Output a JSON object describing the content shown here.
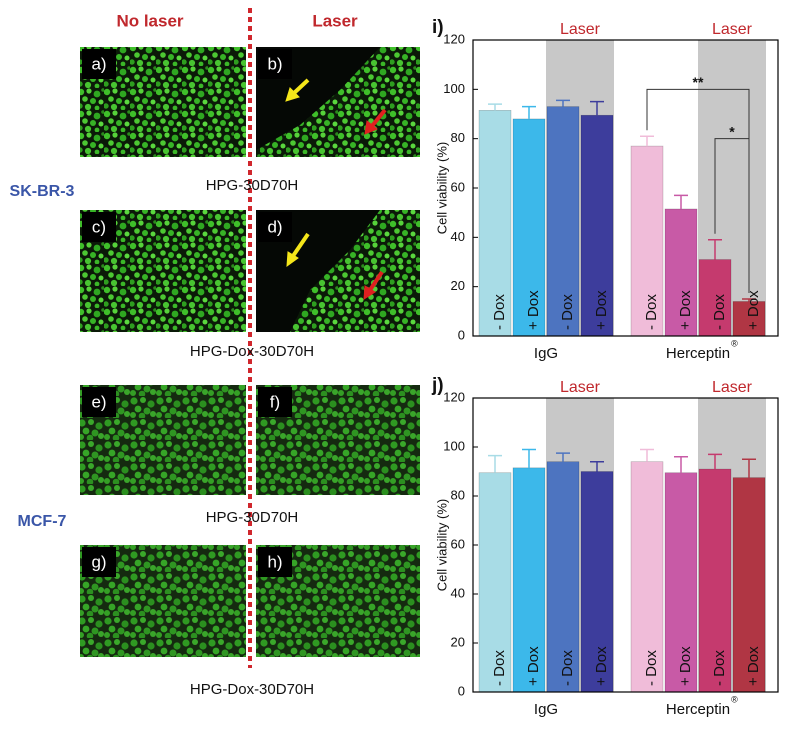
{
  "micrographs": {
    "column_headers": [
      "No laser",
      "Laser"
    ],
    "panels": [
      "a)",
      "b)",
      "c)",
      "d)",
      "e)",
      "f)",
      "g)",
      "h)"
    ],
    "cell_lines": [
      "SK-BR-3",
      "MCF-7"
    ],
    "captions": [
      "HPG-30D70H",
      "HPG-Dox-30D70H",
      "HPG-30D70H",
      "HPG-Dox-30D70H"
    ]
  },
  "chart_data": [
    {
      "type": "bar",
      "panel": "i)",
      "y_label": "Cell viability (%)",
      "categories": [
        "- Dox",
        "+ Dox",
        "- Dox",
        "+ Dox",
        "- Dox",
        "+ Dox",
        "- Dox",
        "+ Dox"
      ],
      "values": [
        91.5,
        88,
        93,
        89.5,
        77,
        51.5,
        31,
        14
      ],
      "errors": [
        2.5,
        5,
        2.5,
        5.5,
        4,
        5.5,
        8,
        1
      ],
      "colors": [
        "#a8dce6",
        "#3cb8ea",
        "#4d74c0",
        "#3d3d9c",
        "#f0bcd9",
        "#c85aa6",
        "#c53a6e",
        "#b03644"
      ],
      "groups": [
        {
          "label": "IgG",
          "from": 0,
          "to": 3
        },
        {
          "label": "Herceptin",
          "sup": "®",
          "from": 4,
          "to": 7
        }
      ],
      "highlights": [
        {
          "label": "Laser",
          "from": 2,
          "to": 3
        },
        {
          "label": "Laser",
          "from": 6,
          "to": 7
        }
      ],
      "significance": [
        {
          "text": "**",
          "from": 4,
          "to": 7,
          "y": 100
        },
        {
          "text": "*",
          "from": 6,
          "to": 7,
          "y": 80
        }
      ],
      "ylim": [
        0,
        120
      ],
      "yticks": [
        0,
        20,
        40,
        60,
        80,
        100,
        120
      ]
    },
    {
      "type": "bar",
      "panel": "j)",
      "y_label": "Cell viability (%)",
      "categories": [
        "- Dox",
        "+ Dox",
        "- Dox",
        "+ Dox",
        "- Dox",
        "+ Dox",
        "- Dox",
        "+ Dox"
      ],
      "values": [
        89.5,
        91.5,
        94,
        90,
        94,
        89.5,
        91,
        87.5
      ],
      "errors": [
        7,
        7.5,
        3.5,
        4,
        5,
        6.5,
        6,
        7.5
      ],
      "colors": [
        "#a8dce6",
        "#3cb8ea",
        "#4d74c0",
        "#3d3d9c",
        "#f0bcd9",
        "#c85aa6",
        "#c53a6e",
        "#b03644"
      ],
      "groups": [
        {
          "label": "IgG",
          "from": 0,
          "to": 3
        },
        {
          "label": "Herceptin",
          "sup": "®",
          "from": 4,
          "to": 7
        }
      ],
      "highlights": [
        {
          "label": "Laser",
          "from": 2,
          "to": 3
        },
        {
          "label": "Laser",
          "from": 6,
          "to": 7
        }
      ],
      "significance": [],
      "ylim": [
        0,
        120
      ],
      "yticks": [
        0,
        20,
        40,
        60,
        80,
        100,
        120
      ]
    }
  ]
}
